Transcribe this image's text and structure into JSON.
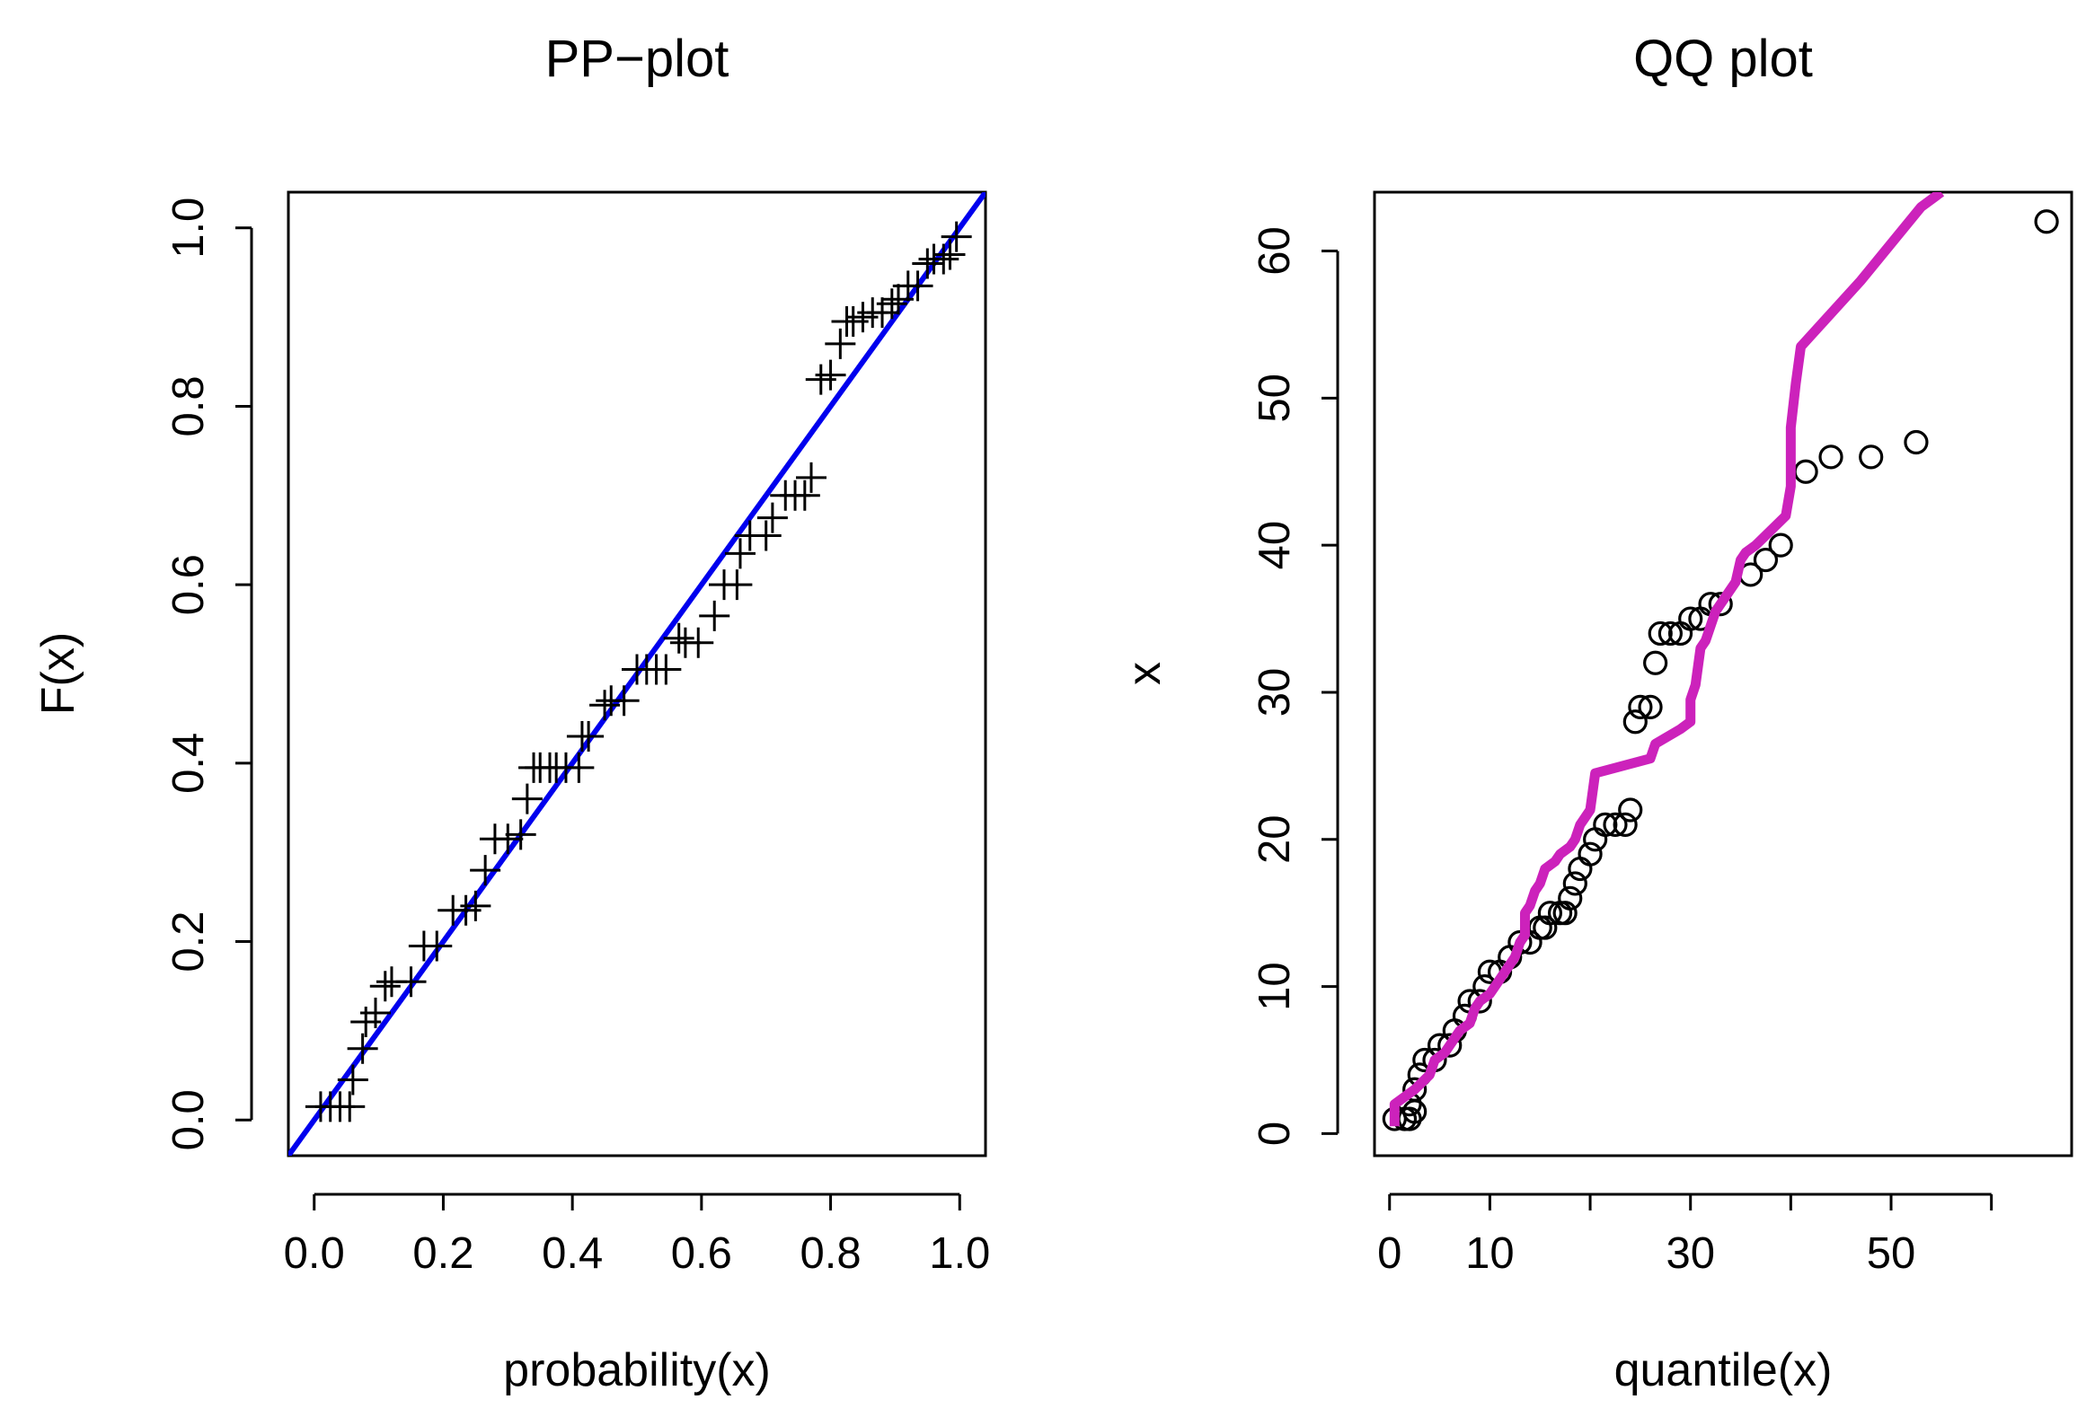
{
  "chart_data": [
    {
      "type": "scatter",
      "title": "PP−plot",
      "xlabel": "probability(x)",
      "ylabel": "F(x)",
      "xlim": [
        -0.04,
        1.04
      ],
      "ylim": [
        -0.04,
        1.04
      ],
      "x_ticks": [
        "0.0",
        "0.2",
        "0.4",
        "0.6",
        "0.8",
        "1.0"
      ],
      "y_ticks": [
        "0.0",
        "0.2",
        "0.4",
        "0.6",
        "0.8",
        "1.0"
      ],
      "marker": "plus",
      "points": [
        [
          0.01,
          0.015
        ],
        [
          0.025,
          0.015
        ],
        [
          0.04,
          0.015
        ],
        [
          0.055,
          0.015
        ],
        [
          0.06,
          0.045
        ],
        [
          0.075,
          0.08
        ],
        [
          0.08,
          0.11
        ],
        [
          0.095,
          0.12
        ],
        [
          0.11,
          0.15
        ],
        [
          0.12,
          0.155
        ],
        [
          0.15,
          0.155
        ],
        [
          0.17,
          0.195
        ],
        [
          0.19,
          0.195
        ],
        [
          0.215,
          0.235
        ],
        [
          0.235,
          0.235
        ],
        [
          0.25,
          0.24
        ],
        [
          0.265,
          0.28
        ],
        [
          0.28,
          0.315
        ],
        [
          0.3,
          0.315
        ],
        [
          0.32,
          0.32
        ],
        [
          0.33,
          0.36
        ],
        [
          0.34,
          0.395
        ],
        [
          0.35,
          0.395
        ],
        [
          0.365,
          0.395
        ],
        [
          0.375,
          0.395
        ],
        [
          0.39,
          0.395
        ],
        [
          0.41,
          0.395
        ],
        [
          0.415,
          0.43
        ],
        [
          0.425,
          0.43
        ],
        [
          0.45,
          0.465
        ],
        [
          0.46,
          0.47
        ],
        [
          0.48,
          0.47
        ],
        [
          0.5,
          0.505
        ],
        [
          0.515,
          0.505
        ],
        [
          0.53,
          0.505
        ],
        [
          0.545,
          0.505
        ],
        [
          0.565,
          0.54
        ],
        [
          0.575,
          0.535
        ],
        [
          0.595,
          0.535
        ],
        [
          0.62,
          0.565
        ],
        [
          0.635,
          0.6
        ],
        [
          0.655,
          0.6
        ],
        [
          0.66,
          0.635
        ],
        [
          0.675,
          0.655
        ],
        [
          0.7,
          0.655
        ],
        [
          0.71,
          0.675
        ],
        [
          0.73,
          0.7
        ],
        [
          0.745,
          0.7
        ],
        [
          0.76,
          0.7
        ],
        [
          0.77,
          0.72
        ],
        [
          0.785,
          0.83
        ],
        [
          0.8,
          0.835
        ],
        [
          0.815,
          0.87
        ],
        [
          0.825,
          0.895
        ],
        [
          0.835,
          0.895
        ],
        [
          0.85,
          0.9
        ],
        [
          0.865,
          0.905
        ],
        [
          0.88,
          0.905
        ],
        [
          0.895,
          0.915
        ],
        [
          0.905,
          0.92
        ],
        [
          0.92,
          0.935
        ],
        [
          0.935,
          0.935
        ],
        [
          0.95,
          0.96
        ],
        [
          0.96,
          0.965
        ],
        [
          0.975,
          0.965
        ],
        [
          0.985,
          0.97
        ],
        [
          0.995,
          0.99
        ]
      ],
      "reference_line": {
        "color": "#0000ee",
        "from": [
          -0.04,
          -0.04
        ],
        "to": [
          1.04,
          1.04
        ]
      }
    },
    {
      "type": "scatter",
      "title": "QQ plot",
      "xlabel": "quantile(x)",
      "ylabel": "x",
      "xlim": [
        -1.5,
        68
      ],
      "ylim": [
        -1.5,
        64
      ],
      "x_ticks": [
        {
          "value": 0,
          "label": "0"
        },
        {
          "value": 10,
          "label": "10"
        },
        {
          "value": 20,
          "label": ""
        },
        {
          "value": 30,
          "label": "30"
        },
        {
          "value": 40,
          "label": ""
        },
        {
          "value": 50,
          "label": "50"
        },
        {
          "value": 60,
          "label": ""
        }
      ],
      "y_ticks": [
        "0",
        "10",
        "20",
        "30",
        "40",
        "50",
        "60"
      ],
      "marker": "circle",
      "points": [
        [
          0.5,
          1
        ],
        [
          1.5,
          1
        ],
        [
          2,
          1
        ],
        [
          2.5,
          1.5
        ],
        [
          2,
          2
        ],
        [
          2.5,
          3
        ],
        [
          3,
          4
        ],
        [
          3.5,
          5
        ],
        [
          4.5,
          5
        ],
        [
          5,
          6
        ],
        [
          6,
          6
        ],
        [
          6.5,
          7
        ],
        [
          7.5,
          8
        ],
        [
          8,
          9
        ],
        [
          9,
          9
        ],
        [
          9.5,
          10
        ],
        [
          10,
          11
        ],
        [
          11,
          11
        ],
        [
          12,
          12
        ],
        [
          13,
          13
        ],
        [
          14,
          13
        ],
        [
          15,
          14
        ],
        [
          15.5,
          14
        ],
        [
          16,
          15
        ],
        [
          17,
          15
        ],
        [
          17.5,
          15
        ],
        [
          18,
          16
        ],
        [
          18.5,
          17
        ],
        [
          19,
          18
        ],
        [
          20,
          19
        ],
        [
          20.5,
          20
        ],
        [
          21.5,
          21
        ],
        [
          22.5,
          21
        ],
        [
          23.5,
          21
        ],
        [
          24,
          22
        ],
        [
          24.5,
          28
        ],
        [
          25,
          29
        ],
        [
          26,
          29
        ],
        [
          26.5,
          32
        ],
        [
          27,
          34
        ],
        [
          28,
          34
        ],
        [
          29,
          34
        ],
        [
          30,
          35
        ],
        [
          31,
          35
        ],
        [
          32,
          36
        ],
        [
          33,
          36
        ],
        [
          36,
          38
        ],
        [
          37.5,
          39
        ],
        [
          39,
          40
        ],
        [
          41.5,
          45
        ],
        [
          44,
          46
        ],
        [
          48,
          46
        ],
        [
          52.5,
          47
        ],
        [
          65.5,
          62
        ]
      ],
      "fitted_line": {
        "color": "#cc22bb",
        "points": [
          [
            0.5,
            0.5
          ],
          [
            0.5,
            2
          ],
          [
            2.5,
            3
          ],
          [
            4,
            4
          ],
          [
            4.5,
            5
          ],
          [
            5.5,
            5.5
          ],
          [
            6.5,
            6.5
          ],
          [
            7,
            7
          ],
          [
            8,
            7.5
          ],
          [
            8.5,
            8.5
          ],
          [
            9,
            9
          ],
          [
            10,
            9.5
          ],
          [
            10.5,
            10
          ],
          [
            11,
            10.5
          ],
          [
            12,
            11.5
          ],
          [
            12.5,
            12
          ],
          [
            13,
            13
          ],
          [
            13.5,
            13.5
          ],
          [
            13.5,
            15
          ],
          [
            14,
            15.5
          ],
          [
            14.5,
            16.5
          ],
          [
            15,
            17
          ],
          [
            15.5,
            18
          ],
          [
            16.5,
            18.5
          ],
          [
            17,
            19
          ],
          [
            18,
            19.5
          ],
          [
            18.5,
            20
          ],
          [
            19,
            21
          ],
          [
            19.5,
            21.5
          ],
          [
            20,
            22
          ],
          [
            20.5,
            24.5
          ],
          [
            26,
            25.5
          ],
          [
            26.5,
            26.5
          ],
          [
            29,
            27.5
          ],
          [
            30,
            28
          ],
          [
            30,
            29.5
          ],
          [
            30.5,
            30.5
          ],
          [
            31,
            33
          ],
          [
            31.5,
            33.5
          ],
          [
            32,
            34.5
          ],
          [
            32.5,
            35.5
          ],
          [
            33.5,
            36.5
          ],
          [
            34.5,
            37.5
          ],
          [
            35,
            39
          ],
          [
            35.5,
            39.5
          ],
          [
            36.5,
            40
          ],
          [
            39.5,
            42
          ],
          [
            40,
            44
          ],
          [
            40,
            48
          ],
          [
            40.5,
            51
          ],
          [
            41,
            53.5
          ],
          [
            47,
            58
          ],
          [
            53,
            63
          ],
          [
            55,
            64
          ]
        ]
      }
    }
  ]
}
